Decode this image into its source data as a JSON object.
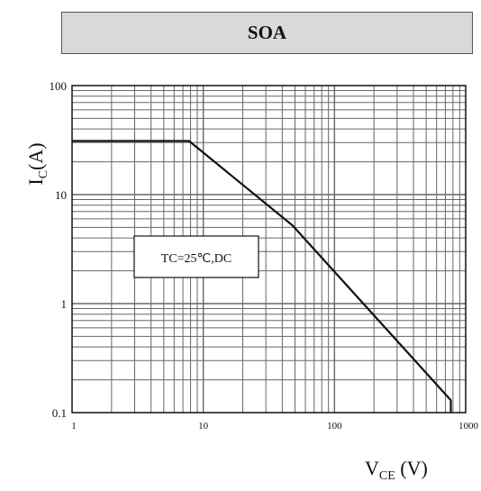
{
  "chart_data": {
    "type": "line",
    "title": "SOA",
    "xlabel": {
      "main": "V",
      "sub": "CE",
      "unit": " (V)"
    },
    "ylabel": {
      "main": "I",
      "sub": "C",
      "unit": "(A)"
    },
    "xscale": "log",
    "yscale": "log",
    "xlim": [
      1,
      1000
    ],
    "ylim": [
      0.1,
      100
    ],
    "grid": true,
    "x_tick_labels": [
      "1",
      "10",
      "100",
      "1000"
    ],
    "y_tick_labels": [
      "0.1",
      "1",
      "10",
      "100"
    ],
    "annotation": "TC=25℃,DC",
    "series": [
      {
        "x": [
          1,
          7.8,
          48,
          770,
          770
        ],
        "y": [
          31,
          31,
          5.2,
          0.13,
          0.1
        ]
      }
    ],
    "colors": {
      "line": "#111111",
      "grid": "#666666",
      "title_bg": "#d9d9d9"
    }
  }
}
